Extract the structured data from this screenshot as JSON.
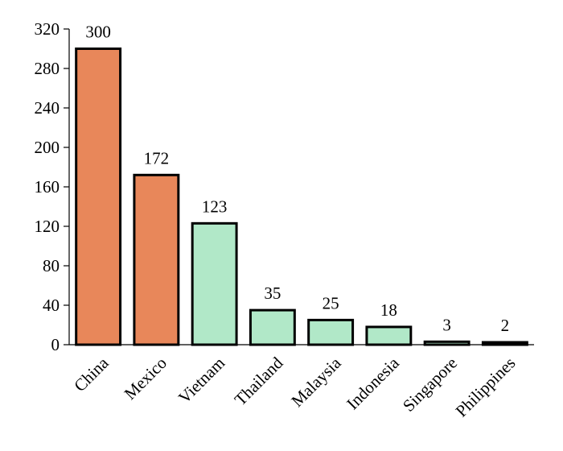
{
  "chart_data": {
    "type": "bar",
    "title": "",
    "xlabel": "",
    "ylabel": "",
    "categories": [
      "China",
      "Mexico",
      "Vietnam",
      "Thailand",
      "Malaysia",
      "Indonesia",
      "Singapore",
      "Philippines"
    ],
    "values": [
      300,
      172,
      123,
      35,
      25,
      18,
      3,
      2
    ],
    "value_labels": [
      "300",
      "172",
      "123",
      "35",
      "25",
      "18",
      "3",
      "2"
    ],
    "bar_colors": [
      "#E8875A",
      "#E8875A",
      "#B1E8C8",
      "#B1E8C8",
      "#B1E8C8",
      "#B1E8C8",
      "#B1E8C8",
      "#B1E8C8"
    ],
    "bar_edge_color": "#000000",
    "ylim": [
      0,
      320
    ],
    "yticks": [
      0,
      40,
      80,
      120,
      160,
      200,
      240,
      280,
      320
    ],
    "ytick_labels": [
      "0",
      "40",
      "80",
      "120",
      "160",
      "200",
      "240",
      "280",
      "320"
    ],
    "grid": false,
    "legend": "none"
  }
}
